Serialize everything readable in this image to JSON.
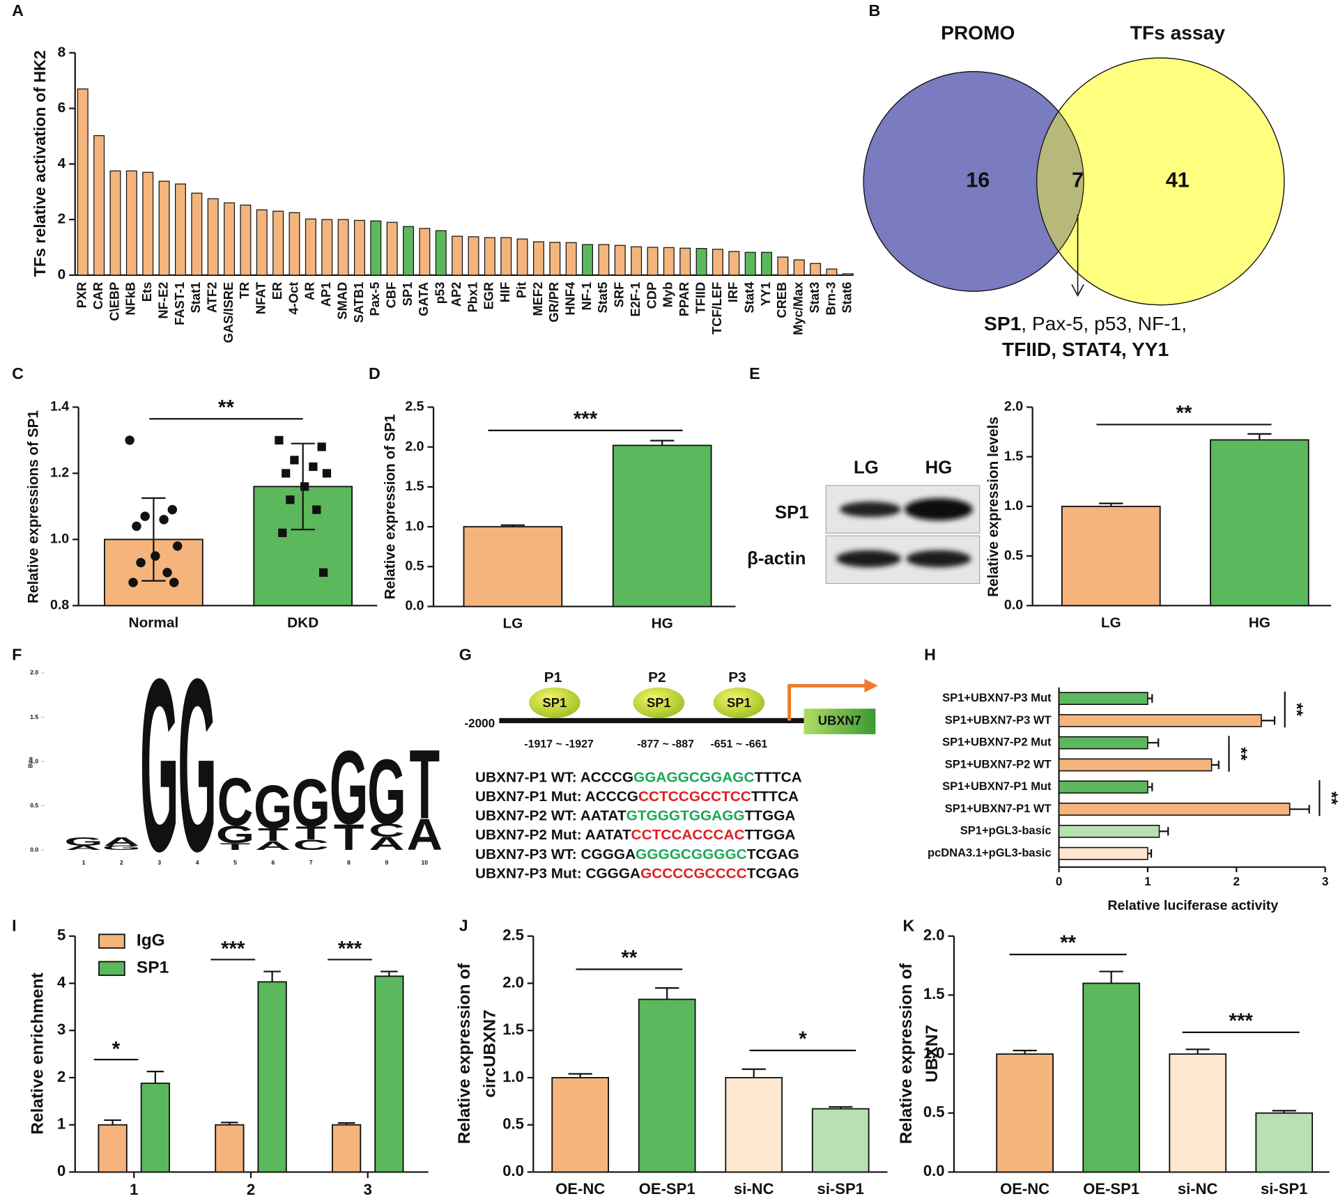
{
  "chart_data": [
    {
      "type": "bar",
      "panel": "A",
      "ylabel": "TFs relative activation of HK2",
      "categories": [
        "PXR",
        "CAR",
        "C\\EBP",
        "NFkB",
        "Ets",
        "NF-E2",
        "FAST-1",
        "Stat1",
        "ATF2",
        "GAS/ISRE",
        "TR",
        "NFAT",
        "ER",
        "4-Oct",
        "AR",
        "AP1",
        "SMAD",
        "SATB1",
        "Pax-5",
        "CBF",
        "SP1",
        "GATA",
        "p53",
        "AP2",
        "Pbx1",
        "EGR",
        "HIF",
        "Pit",
        "MEF2",
        "GR/PR",
        "HNF4",
        "NF-1",
        "Stat5",
        "SRF",
        "E2F-1",
        "CDP",
        "Myb",
        "PPAR",
        "TFIID",
        "TCF/LEF",
        "IRF",
        "Stat4",
        "YY1",
        "CREB",
        "Myc/Max",
        "Stat3",
        "Brn-3",
        "Stat6"
      ],
      "values": [
        6.7,
        5.02,
        3.75,
        3.75,
        3.7,
        3.38,
        3.28,
        2.95,
        2.75,
        2.6,
        2.52,
        2.35,
        2.3,
        2.25,
        2.02,
        2.0,
        2.0,
        1.97,
        1.95,
        1.9,
        1.75,
        1.68,
        1.6,
        1.4,
        1.38,
        1.35,
        1.35,
        1.3,
        1.2,
        1.18,
        1.17,
        1.1,
        1.1,
        1.07,
        1.02,
        1.0,
        0.99,
        0.97,
        0.96,
        0.93,
        0.85,
        0.82,
        0.82,
        0.65,
        0.55,
        0.42,
        0.22,
        0.05
      ],
      "colors": [
        "#f4b47c",
        "#f4b47c",
        "#f4b47c",
        "#f4b47c",
        "#f4b47c",
        "#f4b47c",
        "#f4b47c",
        "#f4b47c",
        "#f4b47c",
        "#f4b47c",
        "#f4b47c",
        "#f4b47c",
        "#f4b47c",
        "#f4b47c",
        "#f4b47c",
        "#f4b47c",
        "#f4b47c",
        "#f4b47c",
        "#5cb85c",
        "#f4b47c",
        "#5cb85c",
        "#f4b47c",
        "#5cb85c",
        "#f4b47c",
        "#f4b47c",
        "#f4b47c",
        "#f4b47c",
        "#f4b47c",
        "#f4b47c",
        "#f4b47c",
        "#f4b47c",
        "#5cb85c",
        "#f4b47c",
        "#f4b47c",
        "#f4b47c",
        "#f4b47c",
        "#f4b47c",
        "#f4b47c",
        "#5cb85c",
        "#f4b47c",
        "#f4b47c",
        "#5cb85c",
        "#5cb85c",
        "#f4b47c",
        "#f4b47c",
        "#f4b47c",
        "#f4b47c",
        "#f4b47c"
      ],
      "ylim": [
        0,
        8
      ],
      "yticks": [
        0,
        2,
        4,
        6,
        8
      ]
    },
    {
      "type": "venn",
      "panel": "B",
      "sets": [
        {
          "name": "PROMO",
          "color": "#7b7bbf",
          "label_color": "#3f3fa0",
          "only": 16
        },
        {
          "name": "TFs assay",
          "color": "#ffff80",
          "label_color": "#9a9a2a",
          "only": 41
        }
      ],
      "intersection": 7,
      "intersection_color": "#b8b87a",
      "list_bold": "SP1",
      "list_rest": ", Pax-5, p53, NF-1,",
      "list_line2": "TFIID, STAT4, YY1"
    },
    {
      "type": "bar",
      "panel": "C",
      "ylabel": "Relative expressions of SP1",
      "categories": [
        "Normal",
        "DKD"
      ],
      "values": [
        1.0,
        1.16
      ],
      "errors": [
        0.125,
        0.13
      ],
      "error_direction": "both",
      "colors": [
        "#f4b47c",
        "#5cb85c"
      ],
      "points": [
        [
          1.3,
          1.09,
          1.07,
          1.06,
          1.04,
          0.98,
          0.95,
          0.93,
          0.9,
          0.87,
          0.87
        ],
        [
          1.3,
          1.28,
          1.24,
          1.22,
          1.2,
          1.2,
          1.16,
          1.12,
          1.09,
          1.02,
          0.9
        ]
      ],
      "markers": [
        "circle",
        "square"
      ],
      "ylim": [
        0.8,
        1.4
      ],
      "yticks": [
        0.8,
        {
          "value": 1.0,
          "label": "1.0"
        },
        1.2,
        1.4
      ],
      "significance": "**"
    },
    {
      "type": "bar",
      "panel": "D",
      "ylabel": "Relative expression of SP1",
      "categories": [
        "LG",
        "HG"
      ],
      "values": [
        1.0,
        2.02
      ],
      "errors": [
        0.02,
        0.06
      ],
      "error_direction": "up",
      "colors": [
        "#f4b47c",
        "#5cb85c"
      ],
      "ylim": [
        0,
        2.5
      ],
      "yticks": [
        {
          "value": 0,
          "label": "0.0"
        },
        0.5,
        {
          "value": 1,
          "label": "1.0"
        },
        1.5,
        {
          "value": 2,
          "label": "2.0"
        },
        2.5
      ],
      "significance": "***"
    },
    {
      "type": "bar",
      "panel": "E",
      "ylabel": "Relative expression levels",
      "categories": [
        "LG",
        "HG"
      ],
      "values": [
        1.0,
        1.67
      ],
      "errors": [
        0.03,
        0.06
      ],
      "error_direction": "up",
      "colors": [
        "#f4b47c",
        "#5cb85c"
      ],
      "ylim": [
        0,
        2.0
      ],
      "yticks": [
        {
          "value": 0,
          "label": "0.0"
        },
        0.5,
        {
          "value": 1,
          "label": "1.0"
        },
        1.5,
        {
          "value": 2,
          "label": "2.0"
        }
      ],
      "significance": "**"
    },
    {
      "type": "logo",
      "panel": "F",
      "ylabel": "Bits",
      "ylim": [
        0,
        2.0
      ],
      "yticks": [
        {
          "value": 0,
          "label": "0.0"
        },
        0.5,
        {
          "value": 1,
          "label": "1.0"
        },
        1.5,
        {
          "value": 2,
          "label": "2.0"
        }
      ],
      "letter_colors": {
        "A": "#3cb371",
        "C": "#2f6fbf",
        "G": "#f0a830",
        "T": "#e23c3c"
      },
      "positions": [
        {
          "position": 1,
          "letters": [
            {
              "letter": "A",
              "bits": 0.05
            },
            {
              "letter": "G",
              "bits": 0.1
            }
          ]
        },
        {
          "position": 2,
          "letters": [
            {
              "letter": "G",
              "bits": 0.05
            },
            {
              "letter": "A",
              "bits": 0.1
            }
          ]
        },
        {
          "position": 3,
          "letters": [
            {
              "letter": "G",
              "bits": 2.0
            }
          ]
        },
        {
          "position": 4,
          "letters": [
            {
              "letter": "G",
              "bits": 2.0
            }
          ]
        },
        {
          "position": 5,
          "letters": [
            {
              "letter": "T",
              "bits": 0.08
            },
            {
              "letter": "G",
              "bits": 0.2
            },
            {
              "letter": "C",
              "bits": 0.55
            }
          ]
        },
        {
          "position": 6,
          "letters": [
            {
              "letter": "A",
              "bits": 0.1
            },
            {
              "letter": "T",
              "bits": 0.15
            },
            {
              "letter": "G",
              "bits": 0.5
            }
          ]
        },
        {
          "position": 7,
          "letters": [
            {
              "letter": "C",
              "bits": 0.12
            },
            {
              "letter": "T",
              "bits": 0.15
            },
            {
              "letter": "G",
              "bits": 0.55
            }
          ]
        },
        {
          "position": 8,
          "letters": [
            {
              "letter": "T",
              "bits": 0.3
            },
            {
              "letter": "G",
              "bits": 0.85
            }
          ]
        },
        {
          "position": 9,
          "letters": [
            {
              "letter": "A",
              "bits": 0.15
            },
            {
              "letter": "C",
              "bits": 0.15
            },
            {
              "letter": "G",
              "bits": 0.75
            }
          ]
        },
        {
          "position": 10,
          "letters": [
            {
              "letter": "A",
              "bits": 0.36
            },
            {
              "letter": "T",
              "bits": 0.8
            }
          ]
        }
      ]
    },
    {
      "type": "horizontal_bar",
      "panel": "H",
      "xlabel": "Relative luciferase activity",
      "categories": [
        "SP1+UBXN7-P3 Mut",
        "SP1+UBXN7-P3 WT",
        "SP1+UBXN7-P2 Mut",
        "SP1+UBXN7-P2 WT",
        "SP1+UBXN7-P1 Mut",
        "SP1+UBXN7-P1 WT",
        "SP1+pGL3-basic",
        "pcDNA3.1+pGL3-basic"
      ],
      "values": [
        1.0,
        2.28,
        1.0,
        1.72,
        1.0,
        2.6,
        1.13,
        1.0
      ],
      "errors": [
        0.05,
        0.15,
        0.12,
        0.08,
        0.05,
        0.22,
        0.1,
        0.04
      ],
      "colors": [
        "#5cb85c",
        "#f4b47c",
        "#5cb85c",
        "#f4b47c",
        "#5cb85c",
        "#f4b47c",
        "#b9e0b3",
        "#fde7cf"
      ],
      "xlim": [
        0,
        3
      ],
      "xticks": [
        0,
        1,
        2,
        3
      ],
      "significance": [
        "**",
        "**",
        "**"
      ]
    },
    {
      "type": "grouped_bar",
      "panel": "I",
      "ylabel": "Relative enrichment",
      "categories": [
        "1",
        "2",
        "3"
      ],
      "series": [
        {
          "name": "IgG",
          "color": "#f4b47c",
          "values": [
            1.0,
            1.0,
            1.0
          ],
          "errors": [
            0.1,
            0.05,
            0.04
          ]
        },
        {
          "name": "SP1",
          "color": "#5cb85c",
          "values": [
            1.88,
            4.03,
            4.15
          ],
          "errors": [
            0.25,
            0.22,
            0.1
          ]
        }
      ],
      "legend": "upper left",
      "ylim": [
        0,
        5
      ],
      "yticks": [
        0,
        1,
        2,
        3,
        4,
        5
      ],
      "significance": [
        "*",
        "***",
        "***"
      ]
    },
    {
      "type": "bar",
      "panel": "J",
      "ylabel": [
        "Relative expression of",
        "circUBXN7"
      ],
      "categories": [
        "OE-NC",
        "OE-SP1",
        "si-NC",
        "si-SP1"
      ],
      "values": [
        1.0,
        1.83,
        1.0,
        0.67
      ],
      "errors": [
        0.04,
        0.12,
        0.09,
        0.02
      ],
      "error_direction": "up",
      "colors": [
        "#f4b47c",
        "#5cb85c",
        "#fde7cf",
        "#b9e0b3"
      ],
      "ylim": [
        0,
        2.5
      ],
      "yticks": [
        {
          "value": 0,
          "label": "0.0"
        },
        0.5,
        {
          "value": 1,
          "label": "1.0"
        },
        1.5,
        {
          "value": 2,
          "label": "2.0"
        },
        2.5
      ],
      "significance": [
        "**",
        "*"
      ]
    },
    {
      "type": "bar",
      "panel": "K",
      "ylabel": [
        "Relative expression of",
        "UBXN7"
      ],
      "categories": [
        "OE-NC",
        "OE-SP1",
        "si-NC",
        "si-SP1"
      ],
      "values": [
        1.0,
        1.6,
        1.0,
        0.5
      ],
      "errors": [
        0.03,
        0.1,
        0.04,
        0.02
      ],
      "error_direction": "up",
      "colors": [
        "#f4b47c",
        "#5cb85c",
        "#fde7cf",
        "#b9e0b3"
      ],
      "ylim": [
        0,
        2.0
      ],
      "yticks": [
        {
          "value": 0,
          "label": "0.0"
        },
        0.5,
        {
          "value": 1,
          "label": "1.0"
        },
        1.5,
        {
          "value": 2,
          "label": "2.0"
        }
      ],
      "significance": [
        "**",
        "***"
      ]
    }
  ],
  "western_blot": {
    "lanes": [
      "LG",
      "HG"
    ],
    "rows": [
      "SP1",
      "β-actin"
    ]
  },
  "promoter_diagram": {
    "panel": "G",
    "start": "-2000",
    "gene": "UBXN7",
    "sites": [
      {
        "label": "P1",
        "factor": "SP1",
        "range": "-1917 ~ -1927"
      },
      {
        "label": "P2",
        "factor": "SP1",
        "range": "-877 ~ -887"
      },
      {
        "label": "P3",
        "factor": "SP1",
        "range": "-651 ~ -661"
      }
    ],
    "sequences": [
      {
        "prefix": "UBXN7-P1 WT: ACCCG",
        "site": "GGAGGCGGAGC",
        "suffix": "TTTCA",
        "site_color": "#1aa85a"
      },
      {
        "prefix": "UBXN7-P1 Mut: ACCCG",
        "site": "CCTCCGCCTCC",
        "suffix": "TTTCA",
        "site_color": "#e02020"
      },
      {
        "prefix": "UBXN7-P2 WT: AATAT",
        "site": "GTGGGTGGAGG",
        "suffix": "TTGGA",
        "site_color": "#1aa85a"
      },
      {
        "prefix": "UBXN7-P2 Mut: AATAT",
        "site": "CCTCCACCCAC",
        "suffix": "TTGGA",
        "site_color": "#e02020"
      },
      {
        "prefix": "UBXN7-P3 WT: CGGGA",
        "site": "GGGGCGGGGC",
        "suffix": "TCGAG",
        "site_color": "#1aa85a"
      },
      {
        "prefix": "UBXN7-P3 Mut: CGGGA",
        "site": "GCCCCGCCCC",
        "suffix": "TCGAG",
        "site_color": "#e02020"
      }
    ]
  }
}
